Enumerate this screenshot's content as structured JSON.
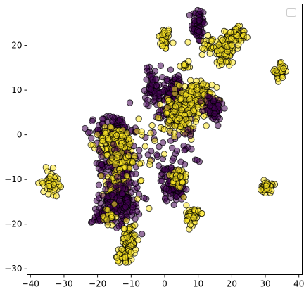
{
  "chart_data": {
    "type": "scatter",
    "title": "",
    "xlabel": "",
    "ylabel": "",
    "xlim": [
      -41,
      41
    ],
    "ylim": [
      -31.3,
      29.3
    ],
    "xticks": [
      -40,
      -30,
      -20,
      -10,
      0,
      10,
      20,
      30,
      40
    ],
    "yticks": [
      -30,
      -20,
      -10,
      0,
      10,
      20
    ],
    "grid": false,
    "legend": {
      "placement": "top-right",
      "entries": []
    },
    "marker": {
      "edge_color": "#000000",
      "alpha": 0.55
    },
    "colors": {
      "class_0": "#440154",
      "class_1": "#fde725"
    },
    "clusters": [
      {
        "cls": 1,
        "cx": 0,
        "cy": 21.5,
        "sx": 0.9,
        "sy": 1.3,
        "n": 40
      },
      {
        "cls": 0,
        "cx": 10,
        "cy": 24.5,
        "sx": 1.0,
        "sy": 2.0,
        "n": 55
      },
      {
        "cls": 1,
        "cx": 13,
        "cy": 20,
        "sx": 1.5,
        "sy": 1.5,
        "n": 20
      },
      {
        "cls": 1,
        "cx": 18,
        "cy": 19,
        "sx": 1.6,
        "sy": 2.0,
        "n": 80
      },
      {
        "cls": 1,
        "cx": 21,
        "cy": 22,
        "sx": 1.5,
        "sy": 1.0,
        "n": 60
      },
      {
        "cls": 1,
        "cx": 6,
        "cy": 15.5,
        "sx": 0.8,
        "sy": 0.4,
        "n": 10
      },
      {
        "cls": 1,
        "cx": 34.5,
        "cy": 14.2,
        "sx": 0.8,
        "sy": 1.0,
        "n": 45
      },
      {
        "cls": 0,
        "cx": -3.5,
        "cy": 11,
        "sx": 1.2,
        "sy": 2.3,
        "n": 55
      },
      {
        "cls": 0,
        "cx": 2,
        "cy": 10,
        "sx": 1.8,
        "sy": 1.8,
        "n": 60
      },
      {
        "cls": 0,
        "cx": 4,
        "cy": 6,
        "sx": 2.5,
        "sy": 2.2,
        "n": 120
      },
      {
        "cls": 1,
        "cx": 9,
        "cy": 8,
        "sx": 2.5,
        "sy": 2.0,
        "n": 170
      },
      {
        "cls": 1,
        "cx": 3,
        "cy": 4.5,
        "sx": 2.0,
        "sy": 1.5,
        "n": 80
      },
      {
        "cls": 0,
        "cx": 14.5,
        "cy": 6,
        "sx": 1.5,
        "sy": 1.5,
        "n": 60
      },
      {
        "cls": 1,
        "cx": 6,
        "cy": 2,
        "sx": 1.5,
        "sy": 1.5,
        "n": 30
      },
      {
        "cls": 0,
        "cx": -15,
        "cy": 1,
        "sx": 2.8,
        "sy": 1.8,
        "n": 110
      },
      {
        "cls": 1,
        "cx": -14.5,
        "cy": -2,
        "sx": 2.8,
        "sy": 1.8,
        "n": 150
      },
      {
        "cls": 0,
        "cx": -13.5,
        "cy": -6.5,
        "sx": 3.0,
        "sy": 2.0,
        "n": 110
      },
      {
        "cls": 1,
        "cx": -12.5,
        "cy": -6,
        "sx": 2.0,
        "sy": 1.5,
        "n": 50
      },
      {
        "cls": 1,
        "cx": -15,
        "cy": -12,
        "sx": 1.8,
        "sy": 1.2,
        "n": 60
      },
      {
        "cls": 0,
        "cx": -13,
        "cy": -15,
        "sx": 3.0,
        "sy": 2.5,
        "n": 150
      },
      {
        "cls": 0,
        "cx": -18,
        "cy": -18,
        "sx": 1.8,
        "sy": 1.0,
        "n": 50
      },
      {
        "cls": 1,
        "cx": -16.5,
        "cy": -18.5,
        "sx": 1.0,
        "sy": 1.2,
        "n": 20
      },
      {
        "cls": 1,
        "cx": -10.5,
        "cy": -23.5,
        "sx": 1.0,
        "sy": 1.8,
        "n": 70
      },
      {
        "cls": 1,
        "cx": -12.5,
        "cy": -27,
        "sx": 1.3,
        "sy": 0.8,
        "n": 30
      },
      {
        "cls": 1,
        "cx": -34,
        "cy": -10.5,
        "sx": 1.2,
        "sy": 1.3,
        "n": 50
      },
      {
        "cls": 0,
        "cx": 2.5,
        "cy": -11,
        "sx": 1.8,
        "sy": 2.0,
        "n": 90
      },
      {
        "cls": 1,
        "cx": 4,
        "cy": -10,
        "sx": 1.3,
        "sy": 1.5,
        "n": 50
      },
      {
        "cls": 1,
        "cx": 8.5,
        "cy": -18,
        "sx": 1.0,
        "sy": 1.2,
        "n": 45
      },
      {
        "cls": 1,
        "cx": 30.5,
        "cy": -11.8,
        "sx": 0.8,
        "sy": 0.6,
        "n": 45
      },
      {
        "cls": 0,
        "cx": -1,
        "cy": -3,
        "sx": 2.5,
        "sy": 4.0,
        "n": 20
      },
      {
        "cls": 1,
        "cx": -5,
        "cy": -2,
        "sx": 4.0,
        "sy": 5.0,
        "n": 25
      },
      {
        "cls": 0,
        "cx": 7,
        "cy": -3,
        "sx": 2.5,
        "sy": 2.5,
        "n": 15
      }
    ]
  }
}
